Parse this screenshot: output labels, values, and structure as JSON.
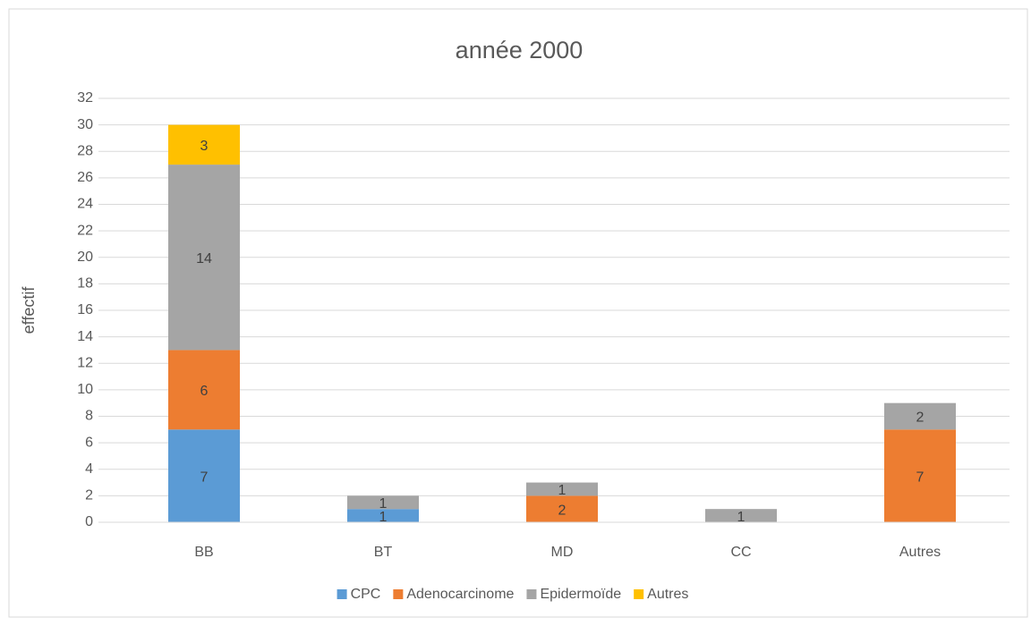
{
  "chart_data": {
    "type": "stacked_bar",
    "title": "année 2000",
    "y_label": "effectif",
    "categories": [
      "BB",
      "BT",
      "MD",
      "CC",
      "Autres"
    ],
    "series": [
      {
        "name": "CPC",
        "color": "#5b9bd5",
        "values": [
          7,
          1,
          0,
          0,
          0
        ]
      },
      {
        "name": "Adenocarcinome",
        "color": "#ed7d31",
        "values": [
          6,
          0,
          2,
          0,
          7
        ]
      },
      {
        "name": "Epidermoïde",
        "color": "#a5a5a5",
        "values": [
          14,
          1,
          1,
          1,
          2
        ]
      },
      {
        "name": "Autres",
        "color": "#ffc000",
        "values": [
          3,
          0,
          0,
          0,
          0
        ]
      }
    ],
    "ylim": [
      0,
      32
    ],
    "yticks": [
      0,
      2,
      4,
      6,
      8,
      10,
      12,
      14,
      16,
      18,
      20,
      22,
      24,
      26,
      28,
      30,
      32
    ],
    "grid": true,
    "legend": "bottom"
  }
}
